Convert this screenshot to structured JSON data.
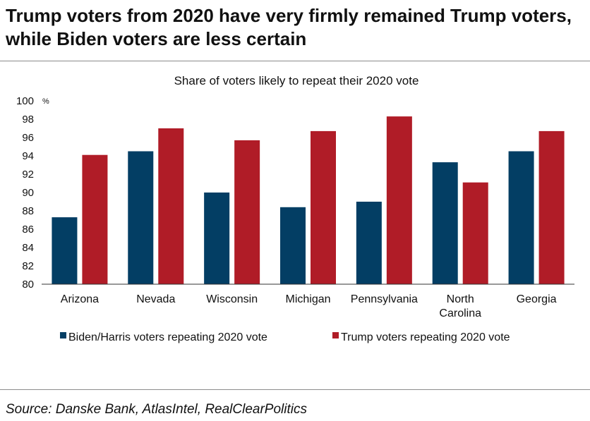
{
  "headline": "Trump voters from 2020 have very firmly remained Trump voters, while Biden voters are less certain",
  "source": "Source: Danske Bank, AtlasIntel, RealClearPolitics",
  "colors": {
    "biden": "#033e64",
    "trump": "#b01c27",
    "axis": "#333333"
  },
  "chart_data": {
    "type": "bar",
    "title": "Share of voters likely to repeat their 2020 vote",
    "unit": "%",
    "xlabel": "",
    "ylabel": "%",
    "ylim": [
      80,
      100
    ],
    "yticks": [
      80,
      82,
      84,
      86,
      88,
      90,
      92,
      94,
      96,
      98,
      100
    ],
    "grid": false,
    "legend_position": "bottom",
    "categories": [
      [
        "Arizona"
      ],
      [
        "Nevada"
      ],
      [
        "Wisconsin"
      ],
      [
        "Michigan"
      ],
      [
        "Pennsylvania"
      ],
      [
        "North",
        "Carolina"
      ],
      [
        "Georgia"
      ]
    ],
    "series": [
      {
        "name": "Biden/Harris voters repeating 2020 vote",
        "values": [
          87.3,
          94.5,
          90.0,
          88.4,
          89.0,
          93.3,
          94.5
        ]
      },
      {
        "name": "Trump voters repeating 2020 vote",
        "values": [
          94.1,
          97.0,
          95.7,
          96.7,
          98.3,
          91.1,
          96.7
        ]
      }
    ]
  }
}
